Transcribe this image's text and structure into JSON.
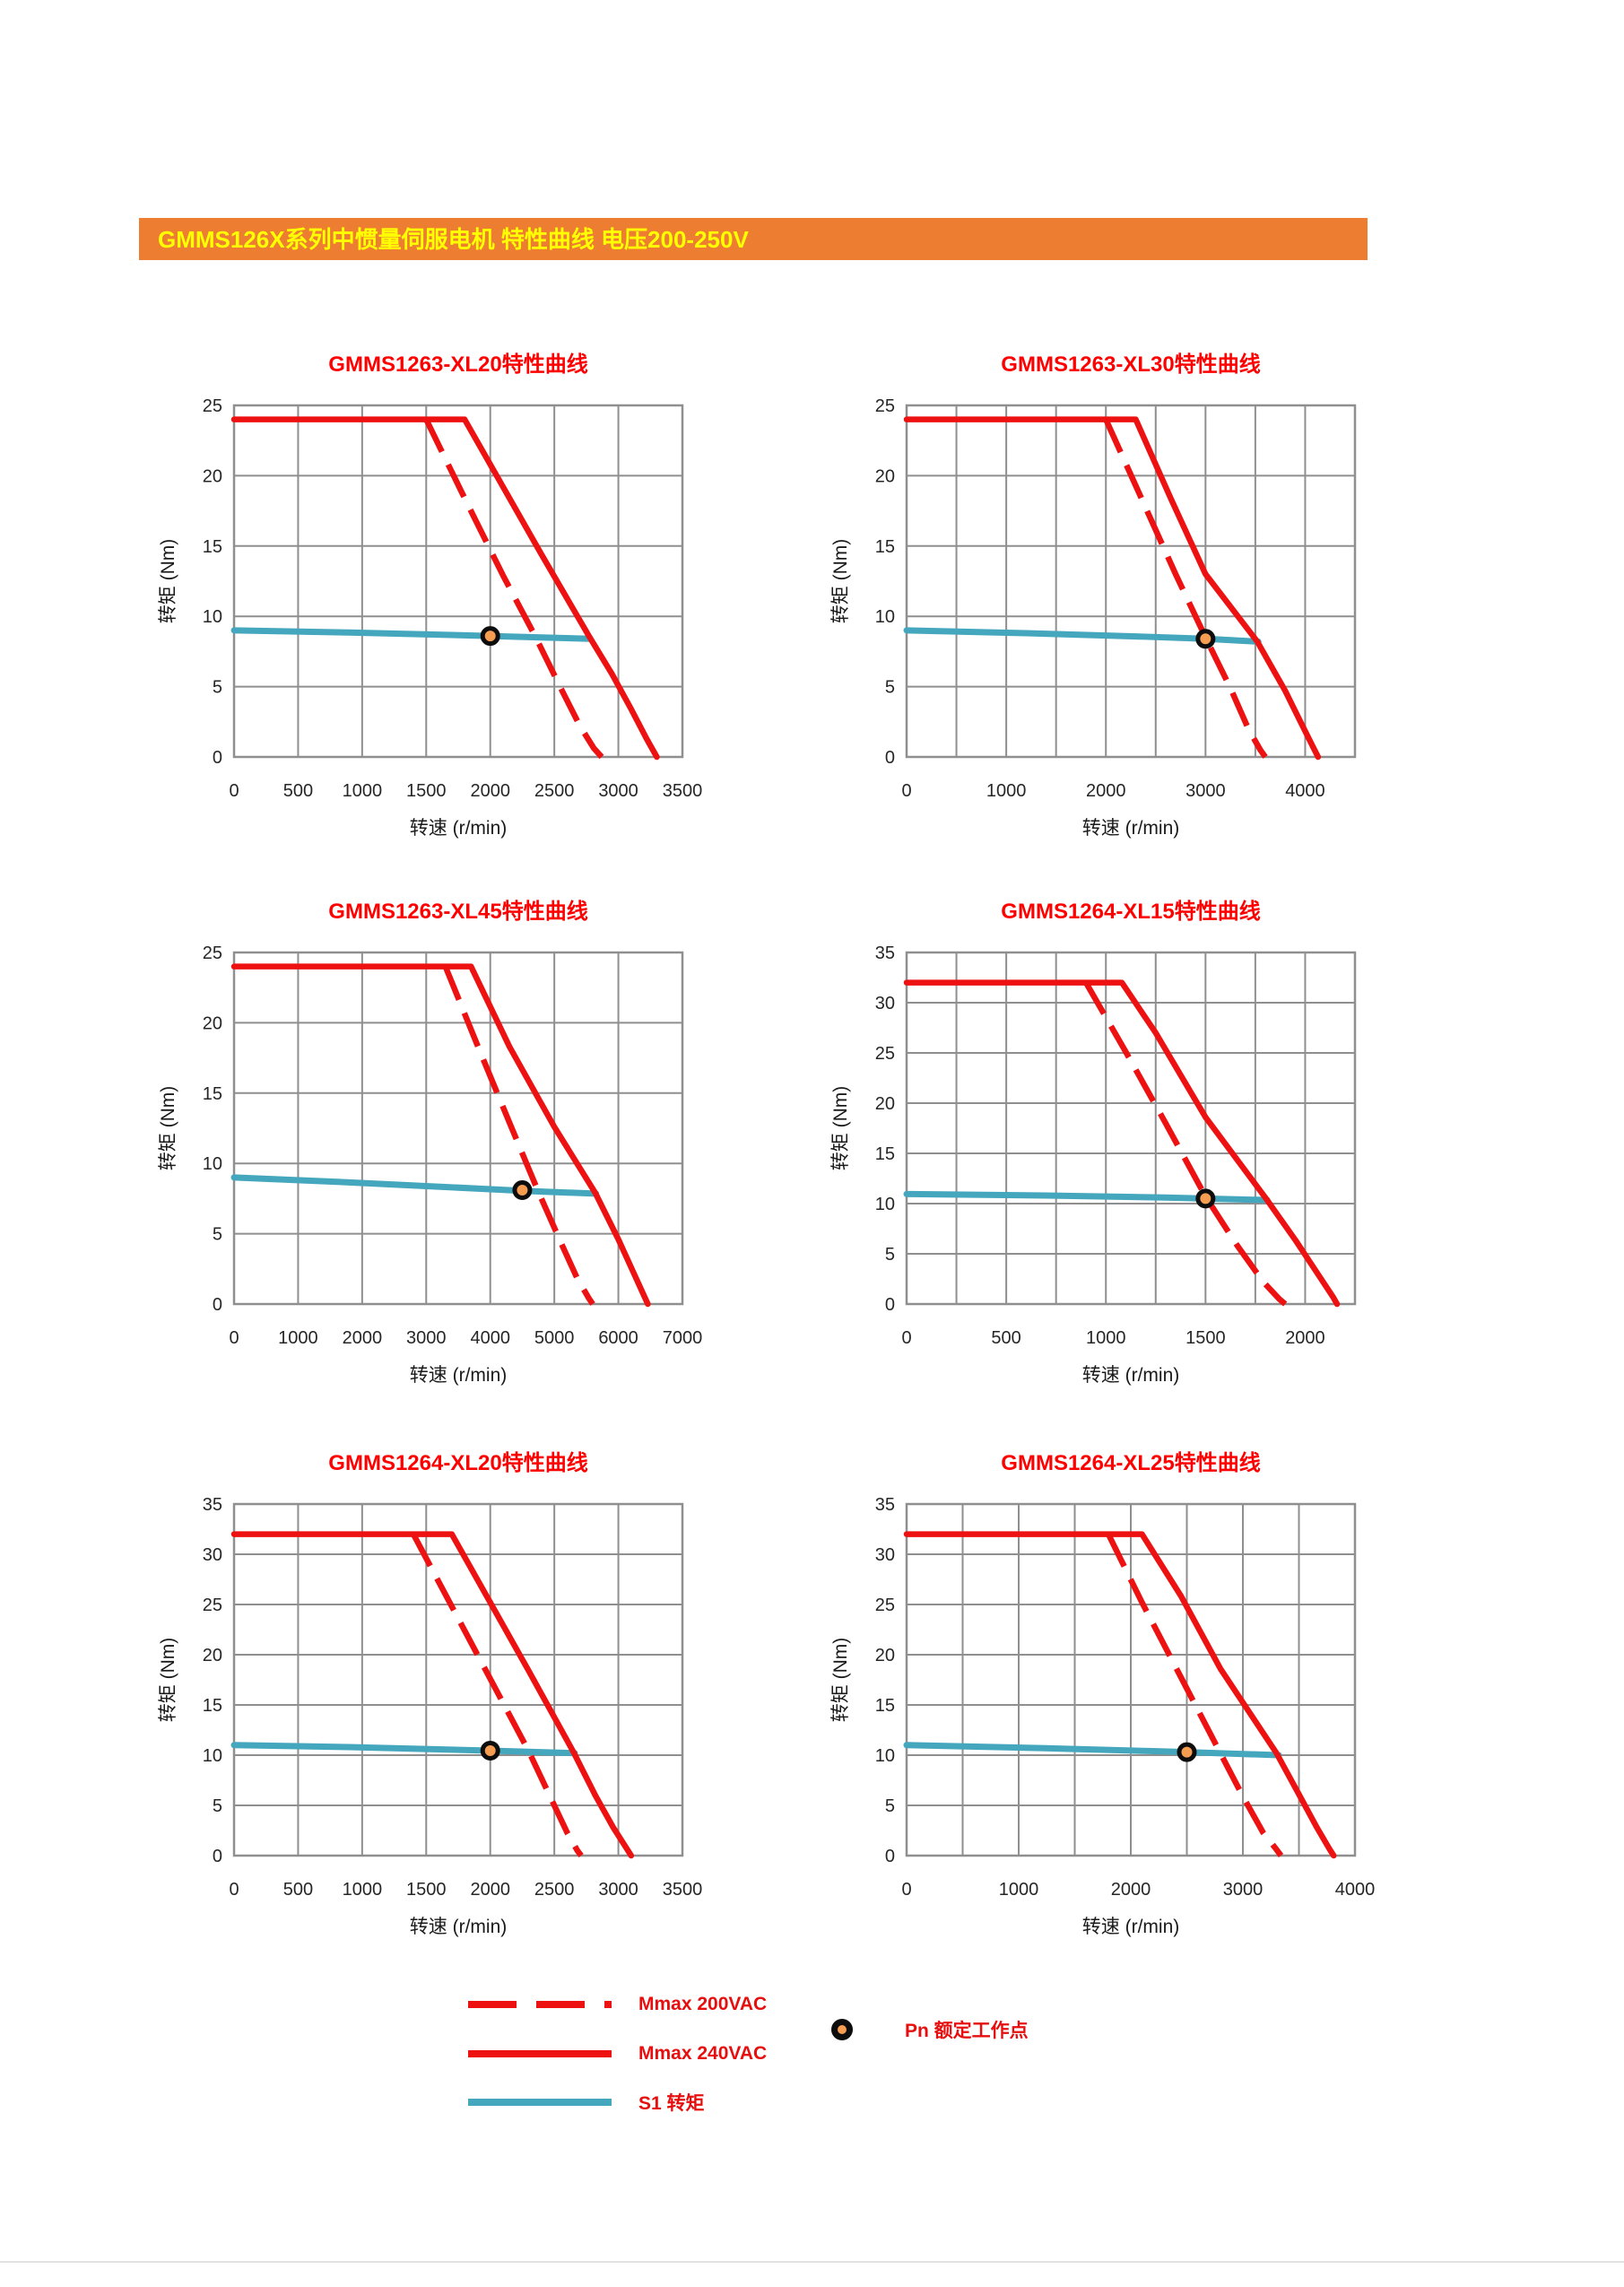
{
  "header": {
    "title": "GMMS126X系列中惯量伺服电机 特性曲线 电压200-250V"
  },
  "colors": {
    "bar_background": "#EC7D31",
    "bar_text": "#FFFF00",
    "chart_title_red": "#FF0000",
    "curve_red": "#ED1111",
    "curve_teal": "#45A7BD",
    "rated_dot_fill": "#F59D51",
    "rated_dot_stroke": "#0D0D0D",
    "grid_gray": "#8F8F8F",
    "legend_text_red": "#E60E0E"
  },
  "legend": {
    "items": [
      {
        "swatch": "dashed-red-line",
        "label": "Mmax 200VAC"
      },
      {
        "swatch": "solid-red-line",
        "label": "Mmax 240VAC"
      },
      {
        "swatch": "solid-teal-line",
        "label": "S1 转矩"
      },
      {
        "swatch": "orange-dot",
        "label": "Pn 额定工作点"
      }
    ]
  },
  "chart_data": [
    {
      "type": "line",
      "title": "GMMS1263-XL20特性曲线",
      "xlabel": "转速 (r/min)",
      "ylabel": "转矩 (Nm)",
      "xlim": [
        0,
        3500
      ],
      "ylim": [
        0,
        25
      ],
      "x_grid_step": 500,
      "x_label_step": 500,
      "y_grid_step": 5,
      "grid": true,
      "series": [
        {
          "name": "Mmax 240VAC",
          "style": "solid",
          "points": [
            [
              0,
              24
            ],
            [
              1800,
              24
            ],
            [
              2100,
              19.2
            ],
            [
              2400,
              14.4
            ],
            [
              2770,
              8.6
            ],
            [
              2950,
              5.9
            ],
            [
              3100,
              3.4
            ],
            [
              3220,
              1.3
            ],
            [
              3300,
              0
            ]
          ]
        },
        {
          "name": "Mmax 200VAC",
          "style": "dashed",
          "points": [
            [
              1500,
              24
            ],
            [
              1800,
              18.4
            ],
            [
              2100,
              12.9
            ],
            [
              2350,
              8.6
            ],
            [
              2550,
              4.9
            ],
            [
              2700,
              2.2
            ],
            [
              2810,
              0.6
            ],
            [
              2870,
              0
            ]
          ]
        },
        {
          "name": "S1 转矩",
          "style": "s1",
          "points": [
            [
              0,
              9
            ],
            [
              900,
              8.85
            ],
            [
              1800,
              8.65
            ],
            [
              2400,
              8.5
            ],
            [
              2780,
              8.4
            ]
          ]
        }
      ],
      "rated_point": {
        "name": "Pn 额定工作点",
        "x": 2000,
        "y": 8.6
      }
    },
    {
      "type": "line",
      "title": "GMMS1263-XL30特性曲线",
      "xlabel": "转速 (r/min)",
      "ylabel": "转矩 (Nm)",
      "xlim": [
        0,
        4500
      ],
      "ylim": [
        0,
        25
      ],
      "x_grid_step": 500,
      "x_label_step": 1000,
      "y_grid_step": 5,
      "grid": true,
      "series": [
        {
          "name": "Mmax 240VAC",
          "style": "solid",
          "points": [
            [
              0,
              24
            ],
            [
              2300,
              24
            ],
            [
              2650,
              18.4
            ],
            [
              3000,
              13
            ],
            [
              3520,
              8.2
            ],
            [
              3800,
              4.7
            ],
            [
              3960,
              2.4
            ],
            [
              4080,
              0.7
            ],
            [
              4130,
              0
            ]
          ]
        },
        {
          "name": "Mmax 200VAC",
          "style": "dashed",
          "points": [
            [
              2000,
              24
            ],
            [
              2350,
              18.5
            ],
            [
              2700,
              13
            ],
            [
              3000,
              8.5
            ],
            [
              3250,
              4.9
            ],
            [
              3430,
              2
            ],
            [
              3550,
              0.5
            ],
            [
              3600,
              0
            ]
          ]
        },
        {
          "name": "S1 转矩",
          "style": "s1",
          "points": [
            [
              0,
              9
            ],
            [
              1200,
              8.8
            ],
            [
              2400,
              8.55
            ],
            [
              3000,
              8.4
            ],
            [
              3530,
              8.2
            ]
          ]
        }
      ],
      "rated_point": {
        "name": "Pn 额定工作点",
        "x": 3000,
        "y": 8.4
      }
    },
    {
      "type": "line",
      "title": "GMMS1263-XL45特性曲线",
      "xlabel": "转速 (r/min)",
      "ylabel": "转矩 (Nm)",
      "xlim": [
        0,
        7000
      ],
      "ylim": [
        0,
        25
      ],
      "x_grid_step": 1000,
      "x_label_step": 1000,
      "y_grid_step": 5,
      "grid": true,
      "series": [
        {
          "name": "Mmax 240VAC",
          "style": "solid",
          "points": [
            [
              0,
              24
            ],
            [
              3700,
              24
            ],
            [
              4300,
              18.3
            ],
            [
              5000,
              12.6
            ],
            [
              5640,
              7.9
            ],
            [
              6000,
              4.6
            ],
            [
              6250,
              2.1
            ],
            [
              6400,
              0.6
            ],
            [
              6460,
              0
            ]
          ]
        },
        {
          "name": "Mmax 200VAC",
          "style": "dashed",
          "points": [
            [
              3300,
              24
            ],
            [
              3800,
              18.4
            ],
            [
              4300,
              12.9
            ],
            [
              4740,
              8.1
            ],
            [
              5100,
              4.4
            ],
            [
              5350,
              1.9
            ],
            [
              5540,
              0.4
            ],
            [
              5600,
              0
            ]
          ]
        },
        {
          "name": "S1 转矩",
          "style": "s1",
          "points": [
            [
              0,
              9
            ],
            [
              1800,
              8.65
            ],
            [
              3400,
              8.3
            ],
            [
              4500,
              8.05
            ],
            [
              5650,
              7.85
            ]
          ]
        }
      ],
      "rated_point": {
        "name": "Pn 额定工作点",
        "x": 4500,
        "y": 8.1
      }
    },
    {
      "type": "line",
      "title": "GMMS1264-XL15特性曲线",
      "xlabel": "转速 (r/min)",
      "ylabel": "转矩 (Nm)",
      "xlim": [
        0,
        2250
      ],
      "ylim": [
        0,
        35
      ],
      "x_grid_step": 250,
      "x_label_step": 500,
      "y_grid_step": 5,
      "grid": true,
      "series": [
        {
          "name": "Mmax 240VAC",
          "style": "solid",
          "points": [
            [
              0,
              32
            ],
            [
              1080,
              32
            ],
            [
              1250,
              27
            ],
            [
              1500,
              18.6
            ],
            [
              1800,
              10.6
            ],
            [
              1950,
              6.4
            ],
            [
              2070,
              2.8
            ],
            [
              2140,
              0.7
            ],
            [
              2160,
              0
            ]
          ]
        },
        {
          "name": "Mmax 200VAC",
          "style": "dashed",
          "points": [
            [
              900,
              32
            ],
            [
              1100,
              25.1
            ],
            [
              1300,
              18
            ],
            [
              1500,
              10.7
            ],
            [
              1660,
              5.8
            ],
            [
              1790,
              2.2
            ],
            [
              1870,
              0.5
            ],
            [
              1900,
              0
            ]
          ]
        },
        {
          "name": "S1 转矩",
          "style": "s1",
          "points": [
            [
              0,
              10.95
            ],
            [
              700,
              10.8
            ],
            [
              1300,
              10.6
            ],
            [
              1500,
              10.5
            ],
            [
              1810,
              10.35
            ]
          ]
        }
      ],
      "rated_point": {
        "name": "Pn 额定工作点",
        "x": 1500,
        "y": 10.5
      }
    },
    {
      "type": "line",
      "title": "GMMS1264-XL20特性曲线",
      "xlabel": "转速 (r/min)",
      "ylabel": "转矩 (Nm)",
      "xlim": [
        0,
        3500
      ],
      "ylim": [
        0,
        35
      ],
      "x_grid_step": 500,
      "x_label_step": 500,
      "y_grid_step": 5,
      "grid": true,
      "series": [
        {
          "name": "Mmax 240VAC",
          "style": "solid",
          "points": [
            [
              0,
              32
            ],
            [
              1700,
              32
            ],
            [
              2000,
              25.2
            ],
            [
              2300,
              18.4
            ],
            [
              2650,
              10.3
            ],
            [
              2820,
              6
            ],
            [
              2960,
              2.8
            ],
            [
              3060,
              0.8
            ],
            [
              3100,
              0
            ]
          ]
        },
        {
          "name": "Mmax 200VAC",
          "style": "dashed",
          "points": [
            [
              1400,
              32
            ],
            [
              1700,
              24.8
            ],
            [
              2000,
              17.6
            ],
            [
              2300,
              10.4
            ],
            [
              2470,
              5.8
            ],
            [
              2600,
              2.3
            ],
            [
              2680,
              0.5
            ],
            [
              2710,
              0
            ]
          ]
        },
        {
          "name": "S1 转矩",
          "style": "s1",
          "points": [
            [
              0,
              11
            ],
            [
              900,
              10.8
            ],
            [
              1700,
              10.55
            ],
            [
              2000,
              10.45
            ],
            [
              2660,
              10.2
            ]
          ]
        }
      ],
      "rated_point": {
        "name": "Pn 额定工作点",
        "x": 2000,
        "y": 10.45
      }
    },
    {
      "type": "line",
      "title": "GMMS1264-XL25特性曲线",
      "xlabel": "转速 (r/min)",
      "ylabel": "转矩 (Nm)",
      "xlim": [
        0,
        4000
      ],
      "ylim": [
        0,
        35
      ],
      "x_grid_step": 500,
      "x_label_step": 1000,
      "y_grid_step": 5,
      "grid": true,
      "series": [
        {
          "name": "Mmax 240VAC",
          "style": "solid",
          "points": [
            [
              0,
              32
            ],
            [
              2100,
              32
            ],
            [
              2450,
              25.8
            ],
            [
              2800,
              18.6
            ],
            [
              3300,
              10.2
            ],
            [
              3500,
              6.1
            ],
            [
              3660,
              2.8
            ],
            [
              3770,
              0.7
            ],
            [
              3810,
              0
            ]
          ]
        },
        {
          "name": "Mmax 200VAC",
          "style": "dashed",
          "points": [
            [
              1800,
              32
            ],
            [
              2100,
              25.2
            ],
            [
              2450,
              17.7
            ],
            [
              2790,
              10.4
            ],
            [
              3000,
              5.9
            ],
            [
              3180,
              2.3
            ],
            [
              3300,
              0.6
            ],
            [
              3340,
              0
            ]
          ]
        },
        {
          "name": "S1 转矩",
          "style": "s1",
          "points": [
            [
              0,
              11
            ],
            [
              1200,
              10.7
            ],
            [
              2200,
              10.4
            ],
            [
              2500,
              10.3
            ],
            [
              3320,
              10
            ]
          ]
        }
      ],
      "rated_point": {
        "name": "Pn 额定工作点",
        "x": 2500,
        "y": 10.3
      }
    }
  ]
}
